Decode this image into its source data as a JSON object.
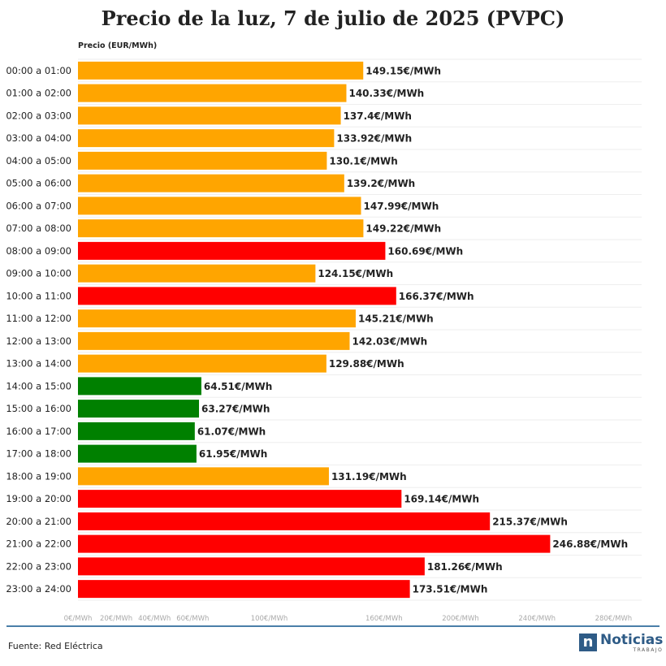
{
  "page": {
    "title": "Precio de la luz, 7 de julio de 2025 (PVPC)",
    "source": "Fuente: Red Eléctrica",
    "logo": {
      "mark": "n",
      "name": "Noticias",
      "sub": "TRABAJO"
    }
  },
  "chart_data": {
    "type": "bar",
    "orientation": "horizontal",
    "title": "Precio de la luz, 7 de julio de 2025 (PVPC)",
    "axis_title": "Precio (EUR/MWh)",
    "value_suffix": "€/MWh",
    "xlim": [
      0,
      280
    ],
    "grid": true,
    "legend": "none",
    "ticks": [
      {
        "value": 0,
        "label": "0€/MWh"
      },
      {
        "value": 20,
        "label": "20€/MWh"
      },
      {
        "value": 40,
        "label": "40€/MWh"
      },
      {
        "value": 60,
        "label": "60€/MWh"
      },
      {
        "value": 100,
        "label": "100€/MWh"
      },
      {
        "value": 160,
        "label": "160€/MWh"
      },
      {
        "value": 200,
        "label": "200€/MWh"
      },
      {
        "value": 240,
        "label": "240€/MWh"
      },
      {
        "value": 280,
        "label": "280€/MWh"
      }
    ],
    "colors": {
      "mid": "#ffa500",
      "high": "#ff0000",
      "low": "#008000"
    },
    "categories": [
      "00:00 a 01:00",
      "01:00 a 02:00",
      "02:00 a 03:00",
      "03:00 a 04:00",
      "04:00 a 05:00",
      "05:00 a 06:00",
      "06:00 a 07:00",
      "07:00 a 08:00",
      "08:00 a 09:00",
      "09:00 a 10:00",
      "10:00 a 11:00",
      "11:00 a 12:00",
      "12:00 a 13:00",
      "13:00 a 14:00",
      "14:00 a 15:00",
      "15:00 a 16:00",
      "16:00 a 17:00",
      "17:00 a 18:00",
      "18:00 a 19:00",
      "19:00 a 20:00",
      "20:00 a 21:00",
      "21:00 a 22:00",
      "22:00 a 23:00",
      "23:00 a 24:00"
    ],
    "values": [
      149.15,
      140.33,
      137.4,
      133.92,
      130.1,
      139.2,
      147.99,
      149.22,
      160.69,
      124.15,
      166.37,
      145.21,
      142.03,
      129.88,
      64.51,
      63.27,
      61.07,
      61.95,
      131.19,
      169.14,
      215.37,
      246.88,
      181.26,
      173.51
    ],
    "value_labels": [
      "149.15€/MWh",
      "140.33€/MWh",
      "137.4€/MWh",
      "133.92€/MWh",
      "130.1€/MWh",
      "139.2€/MWh",
      "147.99€/MWh",
      "149.22€/MWh",
      "160.69€/MWh",
      "124.15€/MWh",
      "166.37€/MWh",
      "145.21€/MWh",
      "142.03€/MWh",
      "129.88€/MWh",
      "64.51€/MWh",
      "63.27€/MWh",
      "61.07€/MWh",
      "61.95€/MWh",
      "131.19€/MWh",
      "169.14€/MWh",
      "215.37€/MWh",
      "246.88€/MWh",
      "181.26€/MWh",
      "173.51€/MWh"
    ],
    "bar_levels": [
      "mid",
      "mid",
      "mid",
      "mid",
      "mid",
      "mid",
      "mid",
      "mid",
      "high",
      "mid",
      "high",
      "mid",
      "mid",
      "mid",
      "low",
      "low",
      "low",
      "low",
      "mid",
      "high",
      "high",
      "high",
      "high",
      "high"
    ]
  }
}
